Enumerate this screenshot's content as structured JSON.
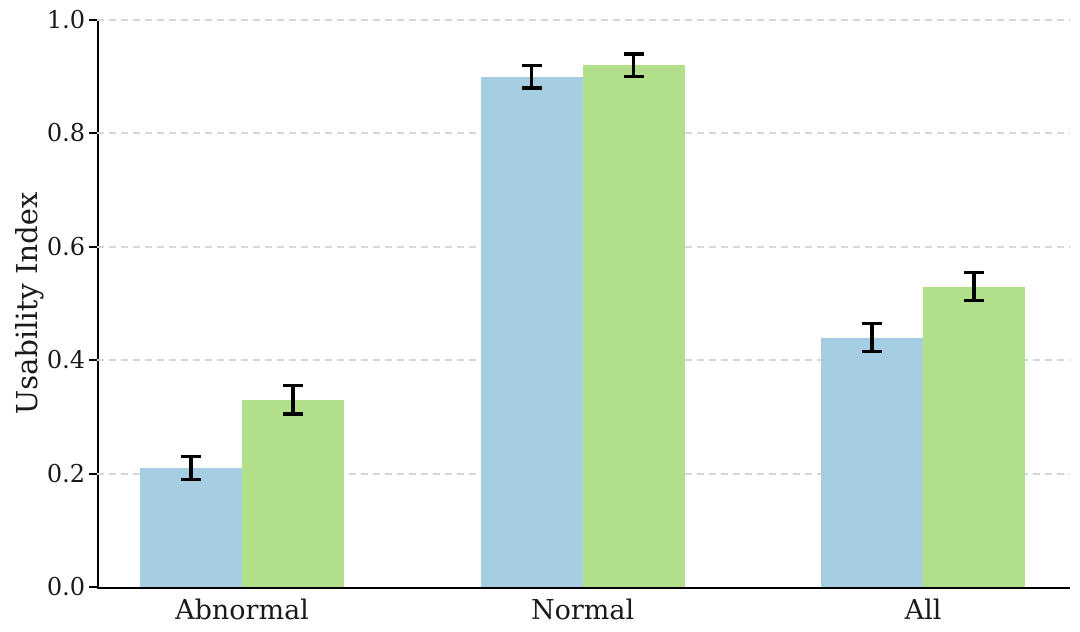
{
  "figure": {
    "background": "#ffffff"
  },
  "chart_data": {
    "type": "bar",
    "title": "",
    "xlabel": "",
    "ylabel": "Usability Index",
    "categories": [
      "Abnormal",
      "Normal",
      "All"
    ],
    "series": [
      {
        "name": "blue-series",
        "color": "#a6cee3",
        "values": [
          0.21,
          0.9,
          0.44
        ],
        "errors": [
          0.02,
          0.02,
          0.025
        ]
      },
      {
        "name": "green-series",
        "color": "#b2df8a",
        "values": [
          0.33,
          0.92,
          0.53
        ],
        "errors": [
          0.025,
          0.02,
          0.025
        ]
      }
    ],
    "ylim": [
      0.0,
      1.0
    ],
    "yticks": [
      0.0,
      0.2,
      0.4,
      0.6,
      0.8,
      1.0
    ],
    "ytick_labels": [
      "0.0",
      "0.2",
      "0.4",
      "0.6",
      "0.8",
      "1.0"
    ],
    "grid": {
      "axis": "y",
      "style": "dashed",
      "color": "#d6d6d6"
    },
    "legend": "none",
    "error_bar_color": "#000000",
    "axis_color": "#000000",
    "text_color": "#1a1a1a"
  }
}
